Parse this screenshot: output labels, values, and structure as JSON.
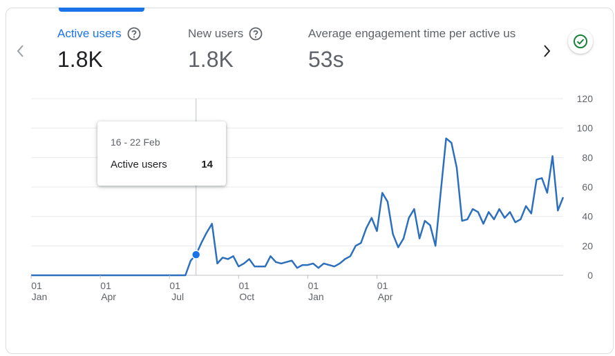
{
  "metrics": [
    {
      "label": "Active users",
      "value": "1.8K",
      "help_icon": "help-circle-icon",
      "active": true
    },
    {
      "label": "New users",
      "value": "1.8K",
      "help_icon": "help-circle-icon",
      "active": false
    },
    {
      "label": "Average engagement time per active us",
      "value": "53s",
      "active": false
    }
  ],
  "nav": {
    "prev_icon": "chevron-left-icon",
    "next_icon": "chevron-right-icon"
  },
  "status_icon": "check-circle-icon",
  "colors": {
    "accent": "#1a73e8",
    "line": "#2b6fbd",
    "success": "#188038",
    "grid": "#e8eaed",
    "text_secondary": "#5f6368"
  },
  "tooltip": {
    "date": "16 - 22 Feb",
    "label": "Active users",
    "value": "14"
  },
  "chart_data": {
    "type": "line",
    "series": [
      {
        "values": [
          0,
          0,
          0,
          0,
          0,
          0,
          0,
          0,
          0,
          0,
          0,
          0,
          0,
          0,
          0,
          0,
          0,
          0,
          0,
          0,
          0,
          0,
          0,
          0,
          0,
          0,
          0,
          0,
          0,
          0,
          10,
          14,
          22,
          29,
          35,
          8,
          12,
          11,
          13,
          6,
          8,
          11,
          6,
          6,
          6,
          13,
          9,
          8,
          9,
          10,
          5,
          7,
          7,
          8,
          5,
          8,
          7,
          6,
          8,
          11,
          13,
          20,
          22,
          32,
          39,
          30,
          56,
          50,
          28,
          19,
          25,
          39,
          45,
          25,
          37,
          34,
          20,
          57,
          93,
          90,
          73,
          37,
          38,
          45,
          43,
          35,
          43,
          38,
          45,
          39,
          43,
          36,
          38,
          47,
          42,
          65,
          66,
          56,
          81,
          44,
          53
        ]
      }
    ],
    "x_ticks": [
      {
        "day": "01",
        "month": "Jan"
      },
      {
        "day": "01",
        "month": "Apr"
      },
      {
        "day": "01",
        "month": "Jul"
      },
      {
        "day": "01",
        "month": "Oct"
      },
      {
        "day": "01",
        "month": "Jan"
      },
      {
        "day": "01",
        "month": "Apr"
      }
    ],
    "y_ticks": [
      0,
      20,
      40,
      60,
      80,
      100,
      120
    ],
    "ylim": [
      0,
      120
    ],
    "highlight": {
      "date": "16 - 22 Feb",
      "value": 14
    },
    "grid": true,
    "y_axis_side": "right"
  }
}
